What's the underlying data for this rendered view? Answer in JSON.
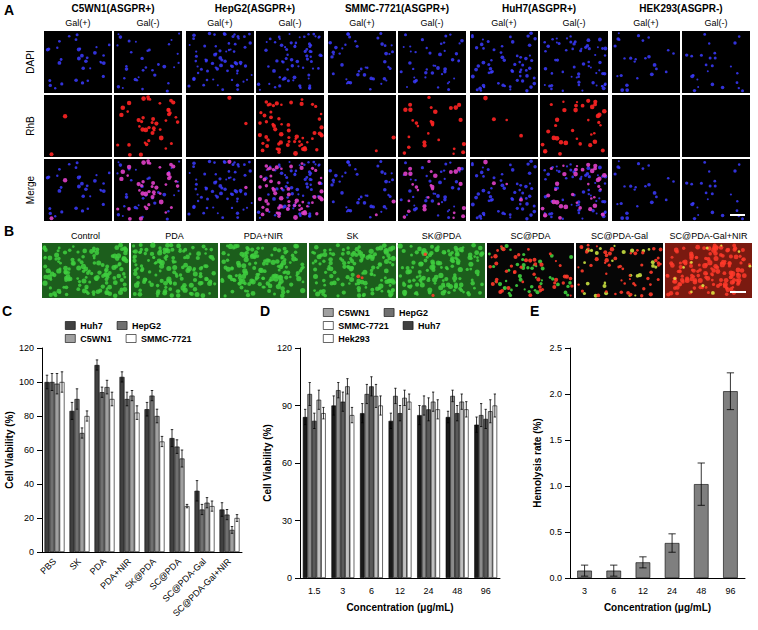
{
  "figure_A": {
    "panel": "A",
    "groups": [
      {
        "label": "C5WN1(ASGPR+)",
        "conditions": [
          "Gal(+)",
          "Gal(-)"
        ]
      },
      {
        "label": "HepG2(ASGPR+)",
        "conditions": [
          "Gal(+)",
          "Gal(-)"
        ]
      },
      {
        "label": "SMMC-7721(ASGPR+)",
        "conditions": [
          "Gal(+)",
          "Gal(-)"
        ]
      },
      {
        "label": "HuH7(ASGPR+)",
        "conditions": [
          "Gal(+)",
          "Gal(-)"
        ]
      },
      {
        "label": "HEK293(ASGPR-)",
        "conditions": [
          "Gal(+)",
          "Gal(-)"
        ]
      }
    ],
    "rows": [
      "DAPI",
      "RhB",
      "Merge"
    ]
  },
  "figure_B": {
    "panel": "B",
    "labels": [
      "Control",
      "PDA",
      "PDA+NIR",
      "SK",
      "SK@PDA",
      "SC@PDA",
      "SC@PDA-Gal",
      "SC@PDA-Gal+NIR"
    ]
  },
  "chart_data": [
    {
      "panel": "C",
      "type": "bar",
      "ylabel": "Cell Viability (%)",
      "categories": [
        "PBS",
        "SK",
        "PDA",
        "PDA+NIR",
        "SK@PDA",
        "SC@PDA",
        "SC@PDA-Gal",
        "SC@PDA-Gal+NIR"
      ],
      "series": [
        {
          "name": "Huh7",
          "color": "#404040",
          "values": [
            100,
            83,
            110,
            103,
            84,
            67,
            36,
            25
          ],
          "errors": [
            4,
            5,
            3,
            3,
            4,
            5,
            6,
            4
          ]
        },
        {
          "name": "HepG2",
          "color": "#707070",
          "values": [
            100,
            90,
            94,
            90,
            92,
            62,
            25,
            22
          ],
          "errors": [
            5,
            6,
            3,
            4,
            3,
            4,
            3,
            3
          ]
        },
        {
          "name": "C5WN1",
          "color": "#a0a0a0",
          "values": [
            99,
            70,
            97,
            92,
            80,
            55,
            29,
            13
          ],
          "errors": [
            6,
            3,
            4,
            3,
            4,
            5,
            3,
            2
          ]
        },
        {
          "name": "SMMC-7721",
          "color": "#ffffff",
          "values": [
            100,
            80,
            90,
            82,
            65,
            27,
            27,
            20
          ],
          "errors": [
            6,
            3,
            4,
            4,
            3,
            1,
            3,
            2
          ]
        }
      ],
      "ylim": [
        0,
        120
      ],
      "yticks": [
        0,
        20,
        40,
        60,
        80,
        100,
        120
      ],
      "grid": false,
      "legend": "top"
    },
    {
      "panel": "D",
      "type": "bar",
      "ylabel": "Cell Viability (%)",
      "xlabel": "Concentration (μg/mL)",
      "categories": [
        "1.5",
        "3",
        "6",
        "12",
        "24",
        "48",
        "96"
      ],
      "series": [
        {
          "name": "C5WN1",
          "color": "#1a1a1a",
          "values": [
            84,
            90,
            86,
            82,
            85,
            84,
            80
          ],
          "errors": [
            4,
            5,
            5,
            4,
            5,
            3,
            4
          ]
        },
        {
          "name": "HepG2",
          "color": "#8c8c8c",
          "values": [
            96,
            98,
            96,
            95,
            90,
            95,
            85
          ],
          "errors": [
            6,
            4,
            5,
            4,
            5,
            3,
            6
          ]
        },
        {
          "name": "SMMC-7721",
          "color": "#5a5a5a",
          "values": [
            82,
            92,
            100,
            86,
            88,
            86,
            83
          ],
          "errors": [
            4,
            5,
            5,
            4,
            6,
            4,
            5
          ]
        },
        {
          "name": "Huh7",
          "color": "#c0c0c0",
          "values": [
            93,
            100,
            95,
            94,
            92,
            92,
            87
          ],
          "errors": [
            5,
            4,
            6,
            4,
            5,
            4,
            6
          ]
        },
        {
          "name": "Hek293",
          "color": "#ffffff",
          "values": [
            86,
            85,
            90,
            92,
            88,
            88,
            90
          ],
          "errors": [
            3,
            4,
            5,
            4,
            5,
            4,
            6
          ]
        }
      ],
      "ylim": [
        0,
        120
      ],
      "yticks": [
        0,
        30,
        60,
        90,
        120
      ],
      "grid": false,
      "legend": "top"
    },
    {
      "panel": "E",
      "type": "bar",
      "ylabel": "Hemolysis rate (%)",
      "xlabel": "Concentration (μg/mL)",
      "categories": [
        "3",
        "6",
        "12",
        "24",
        "48",
        "96"
      ],
      "values": [
        0.08,
        0.08,
        0.17,
        0.38,
        1.02,
        2.03
      ],
      "errors": [
        0.06,
        0.06,
        0.06,
        0.1,
        0.23,
        0.2
      ],
      "color": "#7f7f7f",
      "ylim": [
        0,
        2.5
      ],
      "yticks": [
        {
          "value": 0,
          "label": "0.0"
        },
        0.5,
        {
          "value": 1,
          "label": "1.0"
        },
        1.5,
        {
          "value": 2,
          "label": "2.0"
        },
        2.5
      ],
      "grid": false
    }
  ]
}
